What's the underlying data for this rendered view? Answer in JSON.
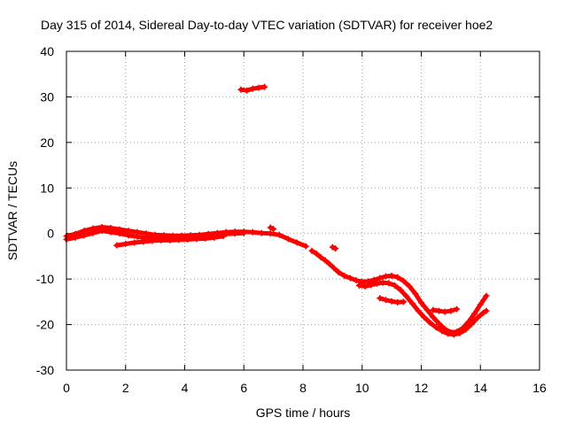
{
  "chart_data": {
    "type": "scatter",
    "title": "Day 315 of 2014, Sidereal Day-to-day VTEC variation (SDTVAR) for receiver hoe2",
    "xlabel": "GPS time / hours",
    "ylabel": "SDTVAR / TECUs",
    "xlim": [
      0,
      16
    ],
    "ylim": [
      -30,
      40
    ],
    "xticks": [
      0,
      2,
      4,
      6,
      8,
      10,
      12,
      14,
      16
    ],
    "yticks": [
      -30,
      -20,
      -10,
      0,
      10,
      20,
      30,
      40
    ],
    "grid": true,
    "series": [
      {
        "name": "SDTVAR",
        "color": "#ff0000",
        "marker": "plus",
        "tracks": [
          {
            "x": [
              0.0,
              0.3,
              0.6,
              0.9,
              1.2,
              1.5,
              1.8,
              2.1,
              2.4,
              2.7,
              3.0,
              3.3,
              3.6,
              3.9,
              4.2,
              4.5,
              4.8,
              5.1,
              5.4,
              5.7,
              6.0,
              6.3,
              6.6,
              6.9,
              7.2,
              7.5,
              7.8,
              8.1
            ],
            "y": [
              -0.6,
              -0.1,
              0.6,
              1.1,
              1.4,
              1.2,
              0.9,
              0.6,
              0.3,
              0.0,
              -0.3,
              -0.4,
              -0.5,
              -0.5,
              -0.4,
              -0.3,
              -0.1,
              0.1,
              0.3,
              0.4,
              0.4,
              0.3,
              0.1,
              0.0,
              -0.3,
              -1.2,
              -2.0,
              -2.8
            ]
          },
          {
            "x": [
              0.0,
              0.3,
              0.6,
              0.9,
              1.2,
              1.5,
              1.8,
              2.1,
              2.4,
              2.7,
              3.0,
              3.3,
              3.6,
              3.9,
              4.2,
              4.5,
              4.8,
              5.1,
              5.4,
              5.7,
              6.0
            ],
            "y": [
              -1.3,
              -0.9,
              -0.4,
              0.1,
              0.6,
              0.3,
              0.0,
              -0.4,
              -0.7,
              -1.0,
              -1.1,
              -1.2,
              -1.1,
              -1.0,
              -0.9,
              -0.7,
              -0.5,
              -0.3,
              -0.1,
              0.0,
              0.1
            ]
          },
          {
            "x": [
              1.7,
              2.0,
              2.3,
              2.6,
              2.9,
              3.2,
              3.5,
              3.8,
              4.1,
              4.4,
              4.7,
              5.0,
              5.3
            ],
            "y": [
              -2.6,
              -2.3,
              -2.0,
              -1.8,
              -1.6,
              -1.5,
              -1.5,
              -1.4,
              -1.3,
              -1.2,
              -1.1,
              -0.9,
              -0.6
            ]
          },
          {
            "x": [
              5.9,
              6.1,
              6.3,
              6.5,
              6.7
            ],
            "y": [
              31.6,
              31.4,
              31.8,
              32.0,
              32.2
            ]
          },
          {
            "x": [
              6.9,
              7.0
            ],
            "y": [
              1.3,
              1.0
            ]
          },
          {
            "x": [
              8.3,
              8.45,
              8.6,
              8.75,
              8.9,
              9.05,
              9.2,
              9.4,
              9.6,
              9.8,
              10.0,
              10.2,
              10.4,
              10.6,
              10.8,
              11.0,
              11.2,
              11.4,
              11.6,
              11.8,
              12.0,
              12.2,
              12.4,
              12.6,
              12.8,
              13.0,
              13.2,
              13.4,
              13.6,
              13.8,
              14.0,
              14.2
            ],
            "y": [
              -3.8,
              -4.4,
              -5.2,
              -5.9,
              -6.7,
              -7.6,
              -8.5,
              -9.3,
              -9.8,
              -10.3,
              -10.6,
              -10.5,
              -10.2,
              -9.8,
              -9.4,
              -9.3,
              -9.6,
              -10.4,
              -11.6,
              -13.2,
              -15.2,
              -16.8,
              -18.4,
              -19.8,
              -21.0,
              -21.7,
              -21.6,
              -20.8,
              -19.4,
              -17.6,
              -15.6,
              -13.7
            ]
          },
          {
            "x": [
              9.9,
              10.1,
              10.3,
              10.5,
              10.7,
              10.9,
              11.1,
              11.3,
              11.5,
              11.7,
              11.9,
              12.1,
              12.3,
              12.5,
              12.7,
              12.9,
              13.1,
              13.3,
              13.5,
              13.7,
              13.9,
              14.1,
              14.2
            ],
            "y": [
              -11.4,
              -11.6,
              -11.3,
              -11.0,
              -10.8,
              -10.9,
              -11.4,
              -12.4,
              -13.8,
              -15.4,
              -17.0,
              -18.4,
              -19.6,
              -20.6,
              -21.4,
              -22.0,
              -22.2,
              -21.9,
              -21.1,
              -19.9,
              -18.5,
              -17.4,
              -17.0
            ]
          },
          {
            "x": [
              9.0,
              9.1
            ],
            "y": [
              -3.0,
              -3.3
            ]
          },
          {
            "x": [
              10.6,
              10.8,
              11.0,
              11.2,
              11.4
            ],
            "y": [
              -14.2,
              -14.6,
              -14.9,
              -15.1,
              -15.0
            ]
          },
          {
            "x": [
              12.4,
              12.6,
              12.8,
              13.0,
              13.2
            ],
            "y": [
              -16.8,
              -17.0,
              -17.2,
              -17.0,
              -16.6
            ]
          }
        ]
      }
    ]
  }
}
